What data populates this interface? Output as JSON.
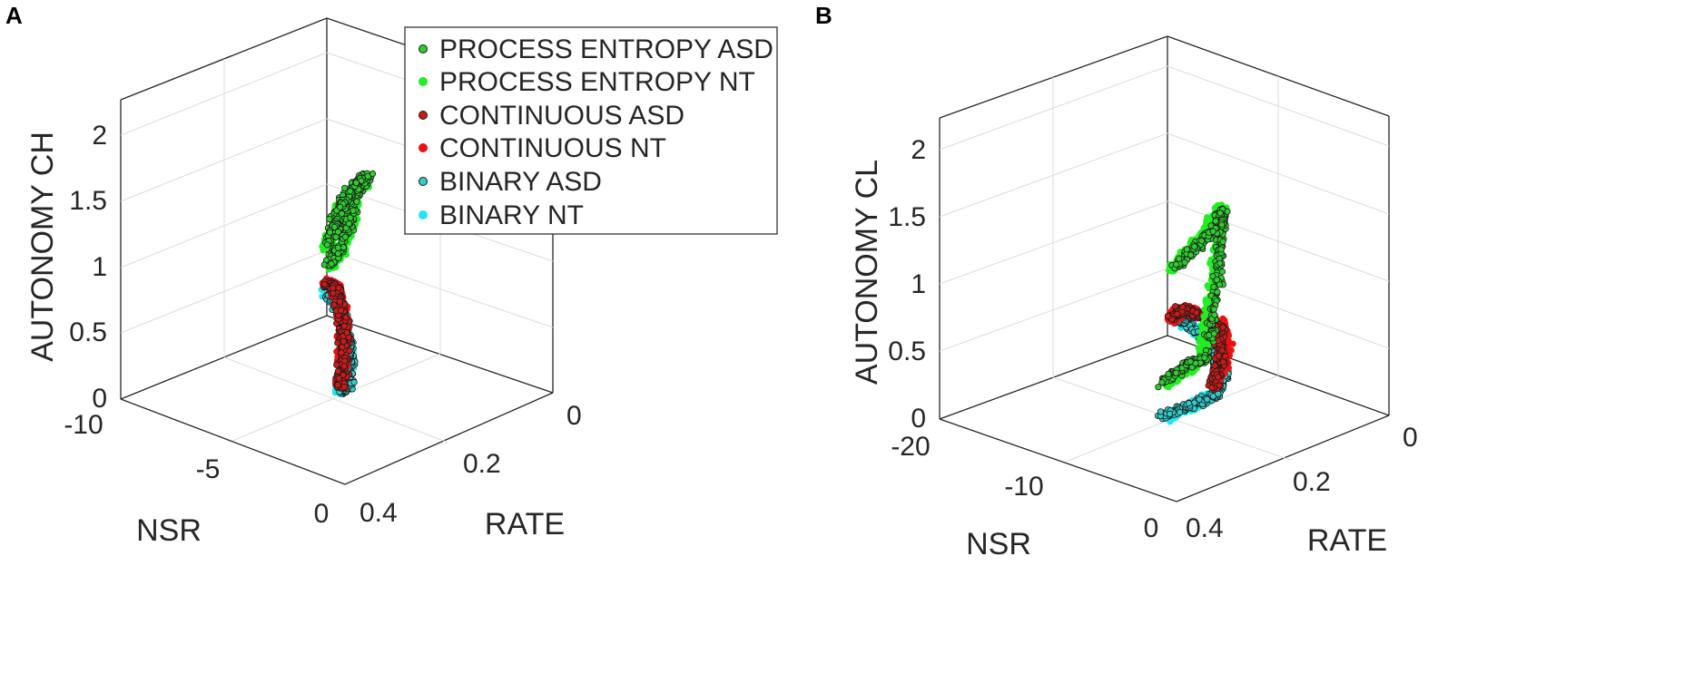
{
  "figure": {
    "panels": [
      "A",
      "B"
    ]
  },
  "legend": {
    "entries": [
      {
        "label": "PROCESS ENTROPY ASD",
        "color": "#2ecc2e",
        "edge": "#1a1a1a"
      },
      {
        "label": "PROCESS ENTROPY NT",
        "color": "#22ee22",
        "edge": "#22ee22"
      },
      {
        "label": "CONTINUOUS ASD",
        "color": "#cc1a1a",
        "edge": "#1a1a1a"
      },
      {
        "label": "CONTINUOUS NT",
        "color": "#ee1111",
        "edge": "#ee1111"
      },
      {
        "label": "BINARY ASD",
        "color": "#33cccc",
        "edge": "#1a1a1a"
      },
      {
        "label": "BINARY NT",
        "color": "#22e5ee",
        "edge": "#22e5ee"
      }
    ]
  },
  "chart_data": [
    {
      "type": "scatter",
      "panel": "A",
      "xlabel": "NSR",
      "ylabel": "RATE",
      "zlabel": "AUTONOMY CH",
      "xlim": [
        -10,
        0
      ],
      "ylim": [
        0,
        0.4
      ],
      "zlim": [
        0,
        2
      ],
      "xticks": [
        "-10",
        "-5",
        "0"
      ],
      "yticks": [
        "0",
        "0.2",
        "0.4"
      ],
      "zticks": [
        "0",
        "0.5",
        "1",
        "1.5",
        "2"
      ],
      "grid": true,
      "legend_position": "top-right",
      "series": [
        {
          "name": "PROCESS ENTROPY ASD",
          "points": [
            [
              -9.8,
              0.36,
              1.52
            ],
            [
              -8.5,
              0.34,
              1.6
            ],
            [
              -7,
              0.3,
              1.72
            ],
            [
              -5.5,
              0.27,
              1.8
            ],
            [
              -4,
              0.2,
              1.55
            ],
            [
              -2.5,
              0.12,
              1.2
            ],
            [
              -1.5,
              0.07,
              0.9
            ],
            [
              -0.5,
              0.02,
              0.6
            ]
          ]
        },
        {
          "name": "PROCESS ENTROPY NT",
          "points": [
            [
              -9.5,
              0.36,
              1.5
            ],
            [
              -8,
              0.33,
              1.62
            ],
            [
              -6.5,
              0.29,
              1.75
            ],
            [
              -5,
              0.25,
              1.7
            ],
            [
              -3.5,
              0.18,
              1.45
            ],
            [
              -2,
              0.1,
              1.1
            ],
            [
              -1,
              0.05,
              0.8
            ],
            [
              -0.3,
              0.01,
              0.55
            ]
          ]
        },
        {
          "name": "CONTINUOUS ASD",
          "points": [
            [
              -9.8,
              0.38,
              0.62
            ],
            [
              -8,
              0.32,
              0.58
            ],
            [
              -6,
              0.25,
              0.6
            ],
            [
              -4,
              0.17,
              0.55
            ],
            [
              -2,
              0.09,
              0.45
            ],
            [
              -0.5,
              0.02,
              0.3
            ]
          ]
        },
        {
          "name": "CONTINUOUS NT",
          "points": [
            [
              -9.5,
              0.37,
              0.6
            ],
            [
              -7.5,
              0.3,
              0.6
            ],
            [
              -5.5,
              0.23,
              0.62
            ],
            [
              -3.5,
              0.15,
              0.55
            ],
            [
              -1.5,
              0.07,
              0.42
            ],
            [
              -0.3,
              0.01,
              0.28
            ]
          ]
        },
        {
          "name": "BINARY ASD",
          "points": [
            [
              -9.8,
              0.38,
              0.6
            ],
            [
              -8,
              0.33,
              0.45
            ],
            [
              -6,
              0.26,
              0.45
            ],
            [
              -4,
              0.18,
              0.35
            ],
            [
              -2,
              0.1,
              0.3
            ],
            [
              -0.5,
              0.02,
              0.22
            ]
          ]
        },
        {
          "name": "BINARY NT",
          "points": [
            [
              -9.6,
              0.37,
              0.58
            ],
            [
              -7.5,
              0.31,
              0.5
            ],
            [
              -5.5,
              0.24,
              0.42
            ],
            [
              -3.5,
              0.16,
              0.33
            ],
            [
              -1.5,
              0.08,
              0.28
            ],
            [
              -0.3,
              0.01,
              0.22
            ]
          ]
        }
      ]
    },
    {
      "type": "scatter",
      "panel": "B",
      "xlabel": "NSR",
      "ylabel": "RATE",
      "zlabel": "AUTONOMY CL",
      "xlim": [
        -20,
        0
      ],
      "ylim": [
        0,
        0.4
      ],
      "zlim": [
        0,
        2
      ],
      "xticks": [
        "-20",
        "-10",
        "0"
      ],
      "yticks": [
        "0",
        "0.2",
        "0.4"
      ],
      "zticks": [
        "0",
        "0.5",
        "1",
        "1.5",
        "2"
      ],
      "grid": true,
      "series": [
        {
          "name": "PROCESS ENTROPY ASD",
          "points": [
            [
              -19,
              0.38,
              0.8
            ],
            [
              -16,
              0.36,
              0.8
            ],
            [
              -13,
              0.34,
              0.75
            ],
            [
              -10,
              0.3,
              1.3
            ],
            [
              -8,
              0.26,
              1.55
            ],
            [
              -5,
              0.2,
              1.3
            ],
            [
              -2,
              0.1,
              0.9
            ],
            [
              -0.3,
              0.02,
              0.55
            ]
          ]
        },
        {
          "name": "PROCESS ENTROPY NT",
          "points": [
            [
              -18,
              0.37,
              0.75
            ],
            [
              -14,
              0.35,
              0.78
            ],
            [
              -11,
              0.31,
              1.25
            ],
            [
              -8.5,
              0.27,
              1.6
            ],
            [
              -6,
              0.22,
              1.45
            ],
            [
              -3,
              0.13,
              1.05
            ],
            [
              -1,
              0.05,
              0.7
            ],
            [
              -0.2,
              0.01,
              0.5
            ]
          ]
        },
        {
          "name": "CONTINUOUS ASD",
          "points": [
            [
              -12,
              0.33,
              0.45
            ],
            [
              -9,
              0.28,
              0.52
            ],
            [
              -6,
              0.22,
              0.55
            ],
            [
              -3,
              0.13,
              0.42
            ],
            [
              -1,
              0.05,
              0.3
            ],
            [
              -0.2,
              0.01,
              0.15
            ]
          ]
        },
        {
          "name": "CONTINUOUS NT",
          "points": [
            [
              -11,
              0.32,
              0.48
            ],
            [
              -8,
              0.27,
              0.55
            ],
            [
              -5,
              0.2,
              0.55
            ],
            [
              -2.5,
              0.11,
              0.4
            ],
            [
              -0.8,
              0.04,
              0.28
            ],
            [
              -0.1,
              0.01,
              0.14
            ]
          ]
        },
        {
          "name": "BINARY ASD",
          "points": [
            [
              -19,
              0.38,
              0.55
            ],
            [
              -16,
              0.36,
              0.5
            ],
            [
              -12,
              0.33,
              0.4
            ],
            [
              -8,
              0.27,
              0.35
            ],
            [
              -4,
              0.16,
              0.3
            ],
            [
              -1,
              0.05,
              0.22
            ],
            [
              -0.2,
              0.01,
              0.15
            ]
          ]
        },
        {
          "name": "BINARY NT",
          "points": [
            [
              -18,
              0.37,
              0.5
            ],
            [
              -14,
              0.35,
              0.45
            ],
            [
              -10,
              0.3,
              0.38
            ],
            [
              -6,
              0.22,
              0.32
            ],
            [
              -2,
              0.09,
              0.25
            ],
            [
              -0.1,
              0.01,
              0.14
            ]
          ]
        }
      ]
    }
  ]
}
